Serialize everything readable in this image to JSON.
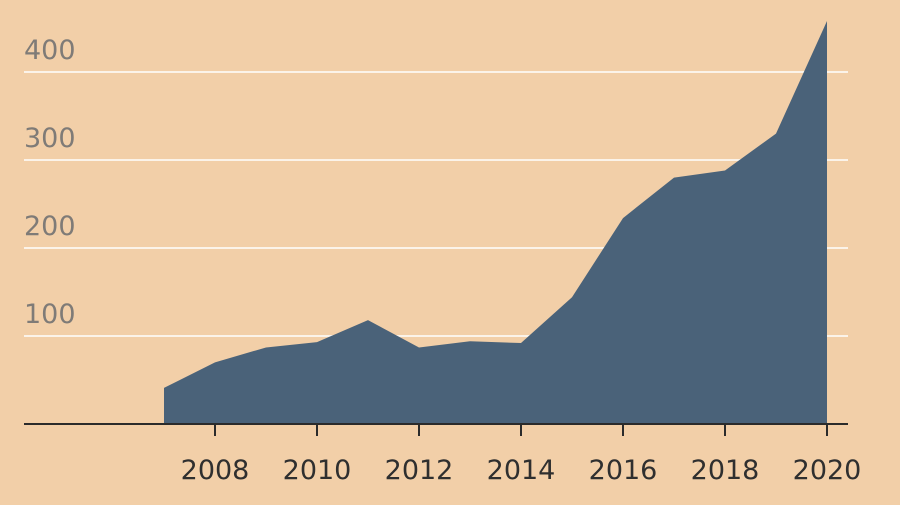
{
  "chart_data": {
    "type": "area",
    "title": "",
    "xlabel": "",
    "ylabel": "",
    "x": [
      2007,
      2008,
      2009,
      2010,
      2011,
      2012,
      2013,
      2014,
      2015,
      2016,
      2017,
      2018,
      2019,
      2020
    ],
    "series": [
      {
        "values": [
          41,
          70,
          87,
          93,
          118,
          87,
          94,
          92,
          144,
          234,
          280,
          288,
          330,
          458
        ]
      }
    ],
    "xlim": [
      2000.5,
      2021
    ],
    "ylim": [
      0,
      460
    ],
    "yticks": [
      100,
      200,
      300,
      400
    ],
    "yticklabels": [
      "100",
      "200",
      "300",
      "400"
    ],
    "xticks": [
      2008,
      2010,
      2012,
      2014,
      2016,
      2018,
      2020
    ],
    "xticklabels": [
      "2008",
      "2010",
      "2012",
      "2014",
      "2016",
      "2018",
      "2020"
    ],
    "grid": true,
    "colors": {
      "background": "#f2cfa8",
      "area": "#4a6279",
      "grid": "#ffffff",
      "axis": "#2b2b2b"
    }
  }
}
